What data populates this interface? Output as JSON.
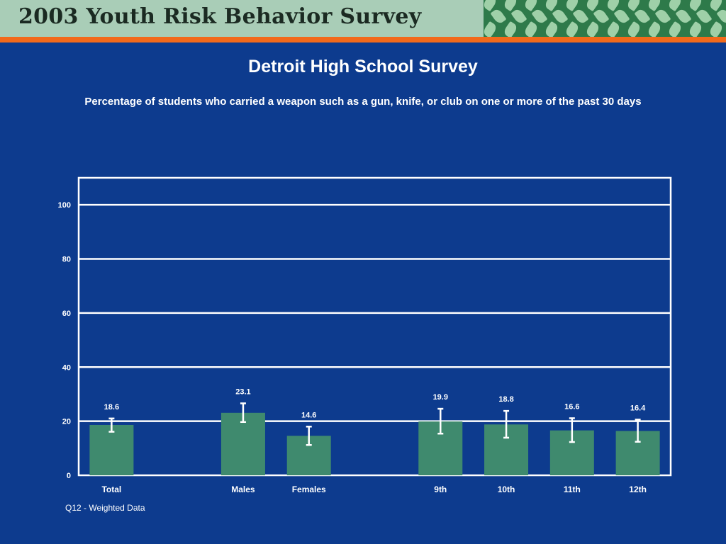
{
  "header": {
    "banner_title": "2003 Youth Risk Behavior Survey"
  },
  "colors": {
    "background": "#0d3b8e",
    "bar": "#3f8a6e",
    "grid": "#ffffff",
    "accent": "#f26a1b"
  },
  "chart_data": {
    "type": "bar",
    "title": "Detroit High School Survey",
    "subtitle": "Percentage of students who carried a weapon such as a gun, knife, or club on one or more of the past 30 days",
    "categories": [
      "Total",
      "Males",
      "Females",
      "9th",
      "10th",
      "11th",
      "12th"
    ],
    "values": [
      18.6,
      23.1,
      14.6,
      19.9,
      18.8,
      16.6,
      16.4
    ],
    "value_labels": [
      "18.6",
      "23.1",
      "14.6",
      "19.9",
      "18.8",
      "16.6",
      "16.4"
    ],
    "error_low": [
      16.1,
      19.7,
      11.2,
      15.4,
      13.9,
      12.3,
      12.4
    ],
    "error_high": [
      21.0,
      26.6,
      18.0,
      24.6,
      23.8,
      21.1,
      20.6
    ],
    "ylim": [
      0,
      110
    ],
    "yticks": [
      0,
      20,
      40,
      60,
      80,
      100
    ],
    "ytick_labels": [
      "0",
      "20",
      "40",
      "60",
      "80",
      "100"
    ],
    "grid": true
  },
  "footnote": "Q12 - Weighted Data"
}
